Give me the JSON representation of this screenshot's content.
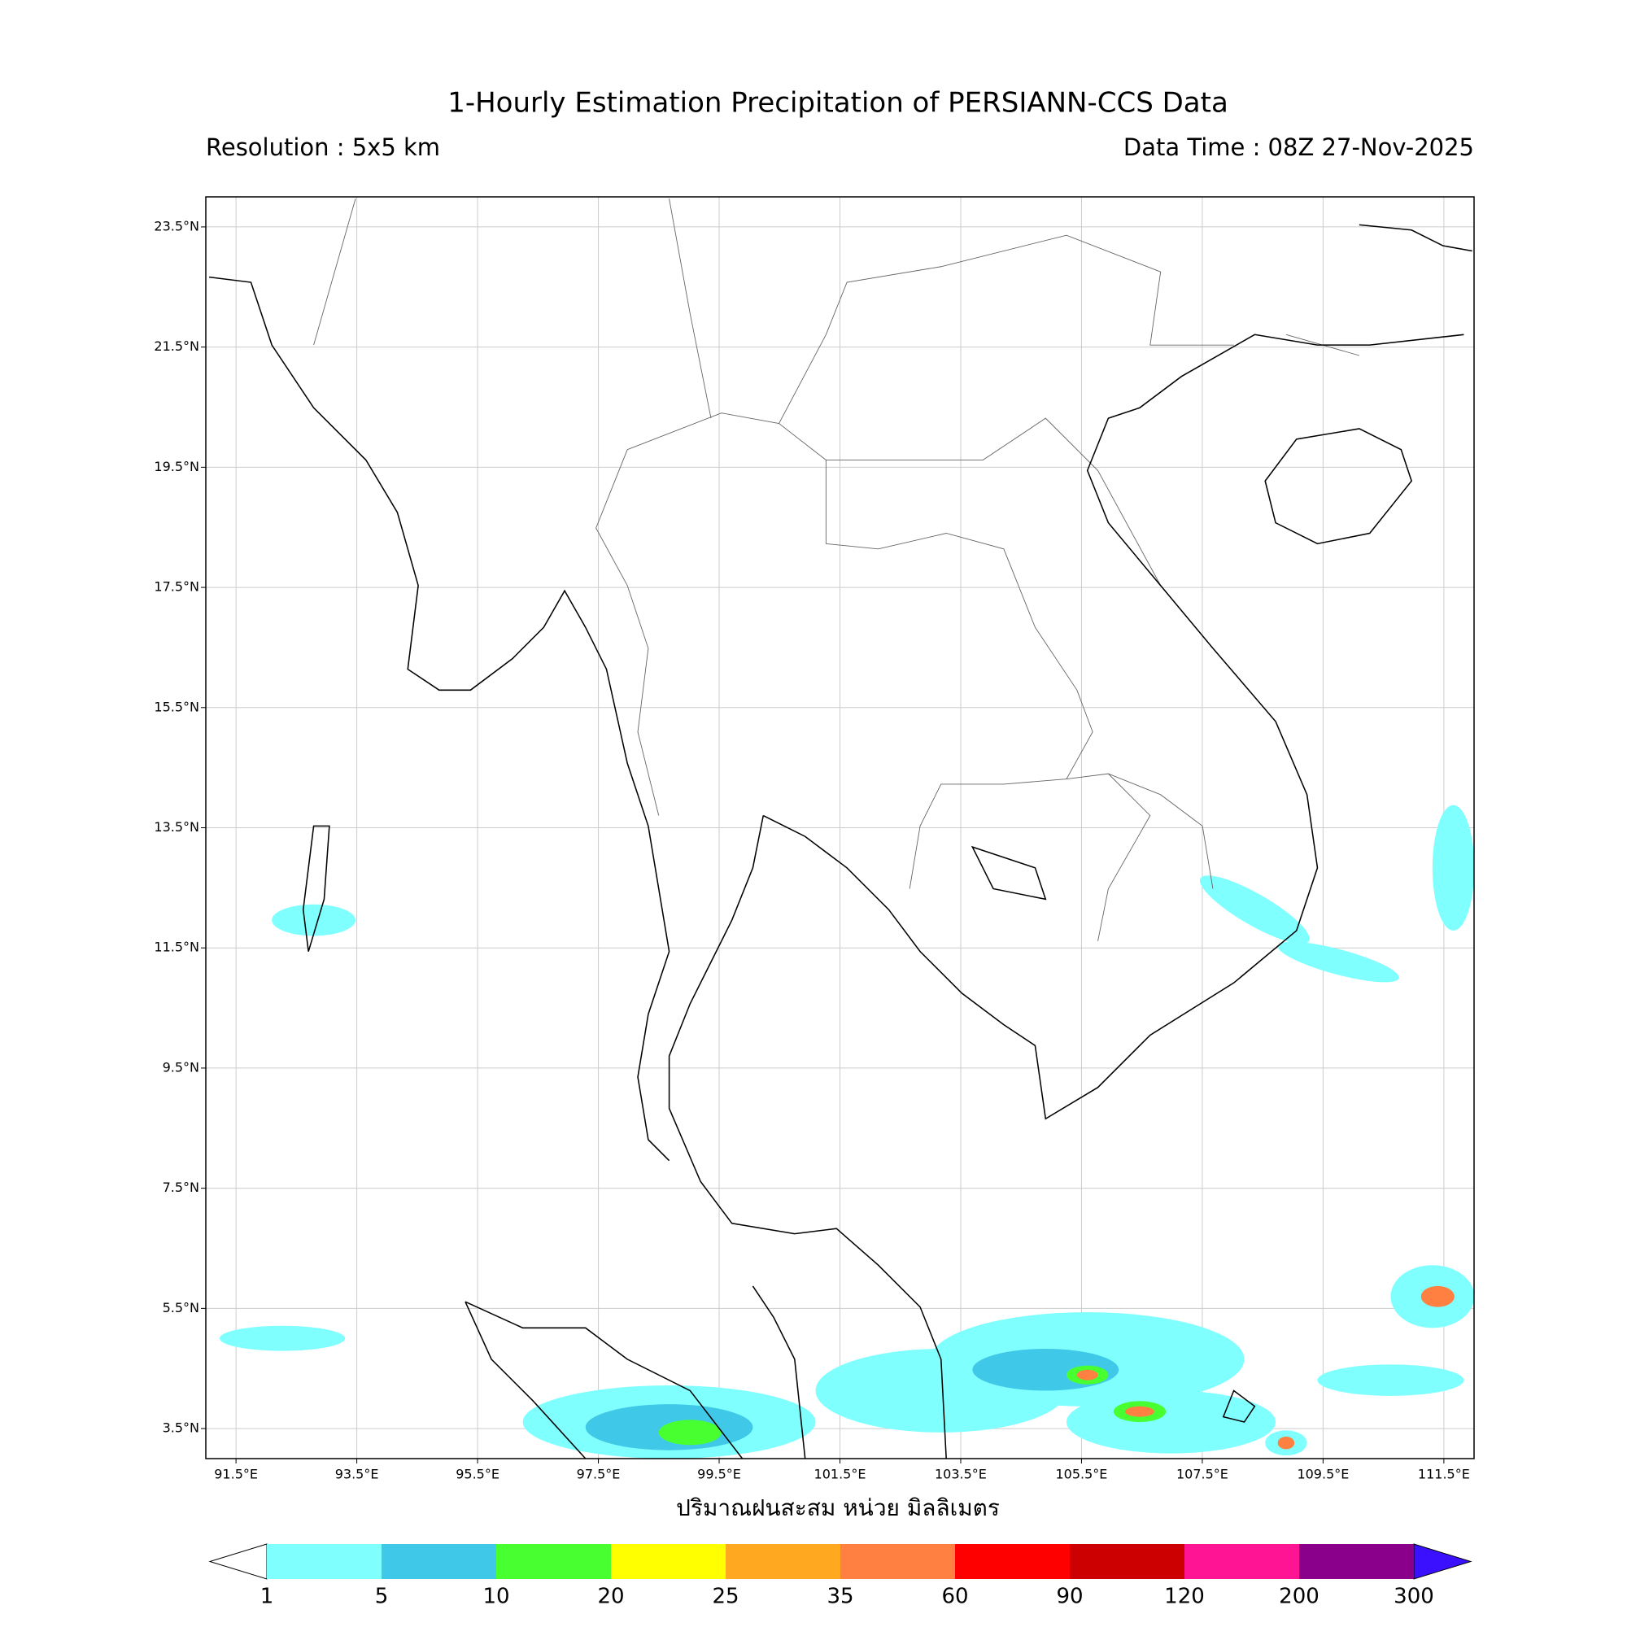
{
  "title": "1-Hourly Estimation Precipitation of PERSIANN-CCS Data",
  "resolution": "Resolution : 5x5 km",
  "data_time": "Data Time : 08Z 27-Nov-2025",
  "map": {
    "xlim": [
      91,
      112
    ],
    "ylim": [
      3,
      24
    ],
    "grid": true,
    "xticks": [
      {
        "value": 91.5,
        "label": "91.5°E"
      },
      {
        "value": 93.5,
        "label": "93.5°E"
      },
      {
        "value": 95.5,
        "label": "95.5°E"
      },
      {
        "value": 97.5,
        "label": "97.5°E"
      },
      {
        "value": 99.5,
        "label": "99.5°E"
      },
      {
        "value": 101.5,
        "label": "101.5°E"
      },
      {
        "value": 103.5,
        "label": "103.5°E"
      },
      {
        "value": 105.5,
        "label": "105.5°E"
      },
      {
        "value": 107.5,
        "label": "107.5°E"
      },
      {
        "value": 109.5,
        "label": "109.5°E"
      },
      {
        "value": 111.5,
        "label": "111.5°E"
      }
    ],
    "yticks": [
      {
        "value": 3.5,
        "label": "3.5°N"
      },
      {
        "value": 5.5,
        "label": "5.5°N"
      },
      {
        "value": 7.5,
        "label": "7.5°N"
      },
      {
        "value": 9.5,
        "label": "9.5°N"
      },
      {
        "value": 11.5,
        "label": "11.5°N"
      },
      {
        "value": 13.5,
        "label": "13.5°N"
      },
      {
        "value": 15.5,
        "label": "15.5°N"
      },
      {
        "value": 17.5,
        "label": "17.5°N"
      },
      {
        "value": 19.5,
        "label": "19.5°N"
      },
      {
        "value": 21.5,
        "label": "21.5°N"
      },
      {
        "value": 23.5,
        "label": "23.5°N"
      }
    ]
  },
  "xlabel": "ปริมาณฝนสะสม หน่วย มิลลิเมตร",
  "colorbar": {
    "levels": [
      1,
      5,
      10,
      20,
      25,
      35,
      60,
      90,
      120,
      200,
      300
    ],
    "colors": [
      "#80ffff",
      "#40c8e8",
      "#48ff30",
      "#ffff00",
      "#ffa820",
      "#ff8040",
      "#ff0000",
      "#cc0000",
      "#ff1493",
      "#8b008b"
    ],
    "under_color": "#ffffff",
    "over_color": "#3a10ff"
  }
}
